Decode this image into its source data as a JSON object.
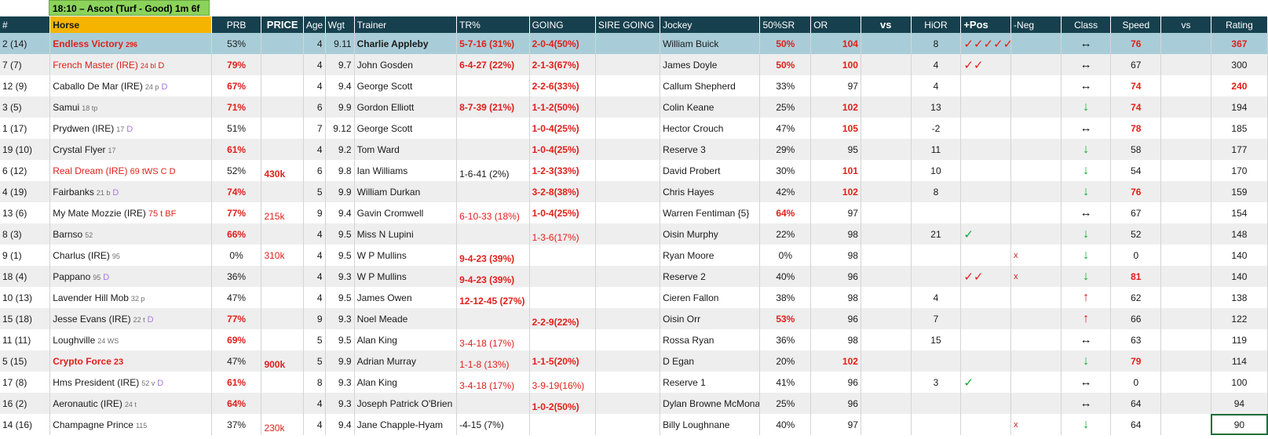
{
  "title": "18:10 – Ascot (Turf - Good) 1m 6f",
  "columns": [
    "#",
    "Horse",
    "PRB",
    "PRICE",
    "Age",
    "Wgt",
    "Trainer",
    "TR%",
    "GOING",
    "SIRE GOING",
    "Jockey",
    "50%SR",
    "OR",
    "vs",
    "HiOR",
    "+Pos",
    "-Neg",
    "Class",
    "Speed",
    "vs",
    "Rating"
  ],
  "rows": [
    {
      "num": "2 (14)",
      "horse": "Endless Victory",
      "horse_sup": "296",
      "prb": "53%",
      "price": "",
      "age": "4",
      "wgt": "9.11",
      "trainer": "Charlie Appleby",
      "tr": "5-7-16 (31%)",
      "going": "2-0-4(50%)",
      "sire": "",
      "jockey": "William Buick",
      "sr": "50%",
      "or": "104",
      "vs": "",
      "hior": "8",
      "pos": "✓✓✓✓✓",
      "neg": "",
      "class": "↔",
      "speed": "76",
      "vs2": "",
      "rating": "367"
    },
    {
      "num": "7 (7)",
      "horse": "French Master (IRE)",
      "horse_sup": "24 bl",
      "horse_sup2": "D",
      "prb": "79%",
      "price": "",
      "age": "4",
      "wgt": "9.7",
      "trainer": "John Gosden",
      "tr": "6-4-27 (22%)",
      "going": "2-1-3(67%)",
      "sire": "",
      "jockey": "James Doyle",
      "sr": "50%",
      "or": "100",
      "vs": "",
      "hior": "4",
      "pos": "✓✓",
      "neg": "",
      "class": "↔",
      "speed": "67",
      "vs2": "",
      "rating": "300"
    },
    {
      "num": "12 (9)",
      "horse": "Caballo De Mar (IRE)",
      "horse_sup": "24 p",
      "horse_sup2": "D",
      "prb": "67%",
      "price": "",
      "age": "4",
      "wgt": "9.4",
      "trainer": "George Scott",
      "tr": "",
      "going": "2-2-6(33%)",
      "sire": "",
      "jockey": "Callum Shepherd",
      "sr": "33%",
      "or": "97",
      "vs": "",
      "hior": "4",
      "pos": "",
      "neg": "",
      "class": "↔",
      "speed": "74",
      "vs2": "",
      "rating": "240"
    },
    {
      "num": "3 (5)",
      "horse": "Samui",
      "horse_sup": "18 tp",
      "prb": "71%",
      "price": "",
      "age": "6",
      "wgt": "9.9",
      "trainer": "Gordon Elliott",
      "tr": "8-7-39 (21%)",
      "going": "1-1-2(50%)",
      "sire": "",
      "jockey": "Colin Keane",
      "sr": "25%",
      "or": "102",
      "vs": "",
      "hior": "13",
      "pos": "",
      "neg": "",
      "class": "↓",
      "speed": "74",
      "vs2": "",
      "rating": "194"
    },
    {
      "num": "1 (17)",
      "horse": "Prydwen (IRE)",
      "horse_sup": "17",
      "horse_sup2": "D",
      "prb": "51%",
      "price": "",
      "age": "7",
      "wgt": "9.12",
      "trainer": "George Scott",
      "tr": "",
      "going": "1-0-4(25%)",
      "sire": "",
      "jockey": "Hector Crouch",
      "sr": "47%",
      "or": "105",
      "vs": "",
      "hior": "-2",
      "pos": "",
      "neg": "",
      "class": "↔",
      "speed": "78",
      "vs2": "",
      "rating": "185"
    },
    {
      "num": "19 (10)",
      "horse": "Crystal Flyer",
      "horse_sup": "17",
      "prb": "61%",
      "price": "",
      "age": "4",
      "wgt": "9.2",
      "trainer": "Tom Ward",
      "tr": "",
      "going": "1-0-4(25%)",
      "sire": "",
      "jockey": "Reserve 3",
      "sr": "29%",
      "or": "95",
      "vs": "",
      "hior": "11",
      "pos": "",
      "neg": "",
      "class": "↓",
      "speed": "58",
      "vs2": "",
      "rating": "177"
    },
    {
      "num": "6 (12)",
      "horse": "Real Dream (IRE)",
      "horse_sup": "69 tWS C D",
      "prb": "52%",
      "price": "430k",
      "age": "6",
      "wgt": "9.8",
      "trainer": "Ian Williams",
      "tr": "1-6-41 (2%)",
      "going": "1-2-3(33%)",
      "sire": "",
      "jockey": "David Probert",
      "sr": "30%",
      "or": "101",
      "vs": "",
      "hior": "10",
      "pos": "",
      "neg": "",
      "class": "↓",
      "speed": "54",
      "vs2": "",
      "rating": "170"
    },
    {
      "num": "4 (19)",
      "horse": "Fairbanks",
      "horse_sup": "21 b",
      "horse_sup2": "D",
      "prb": "74%",
      "price": "",
      "age": "5",
      "wgt": "9.9",
      "trainer": "William Durkan",
      "tr": "",
      "going": "3-2-8(38%)",
      "sire": "",
      "jockey": "Chris Hayes",
      "sr": "42%",
      "or": "102",
      "vs": "",
      "hior": "8",
      "pos": "",
      "neg": "",
      "class": "↓",
      "speed": "76",
      "vs2": "",
      "rating": "159"
    },
    {
      "num": "13 (6)",
      "horse": "My Mate Mozzie (IRE)",
      "horse_sup": "75 t BF",
      "prb": "77%",
      "price": "215k",
      "age": "9",
      "wgt": "9.4",
      "trainer": "Gavin Cromwell",
      "tr": "6-10-33 (18%)",
      "going": "1-0-4(25%)",
      "sire": "",
      "jockey": "Warren Fentiman {5}",
      "sr": "64%",
      "or": "97",
      "vs": "",
      "hior": "",
      "pos": "",
      "neg": "",
      "class": "↔",
      "speed": "67",
      "vs2": "",
      "rating": "154"
    },
    {
      "num": "8 (3)",
      "horse": "Barnso",
      "horse_sup": "52",
      "prb": "66%",
      "price": "",
      "age": "4",
      "wgt": "9.5",
      "trainer": "Miss N Lupini",
      "tr": "",
      "going": "1-3-6(17%)",
      "sire": "",
      "jockey": "Oisin Murphy",
      "sr": "22%",
      "or": "98",
      "vs": "",
      "hior": "21",
      "pos": "✓",
      "neg": "",
      "class": "↓",
      "speed": "52",
      "vs2": "",
      "rating": "148"
    },
    {
      "num": "9 (1)",
      "horse": "Charlus (IRE)",
      "horse_sup": "95",
      "prb": "0%",
      "price": "310k",
      "age": "4",
      "wgt": "9.5",
      "trainer": "W P Mullins",
      "tr": "9-4-23 (39%)",
      "going": "",
      "sire": "",
      "jockey": "Ryan Moore",
      "sr": "0%",
      "or": "98",
      "vs": "",
      "hior": "",
      "pos": "",
      "neg": "x",
      "class": "↓",
      "speed": "0",
      "vs2": "",
      "rating": "140"
    },
    {
      "num": "18 (4)",
      "horse": "Pappano",
      "horse_sup": "95",
      "horse_sup2": "D",
      "prb": "36%",
      "price": "",
      "age": "4",
      "wgt": "9.3",
      "trainer": "W P Mullins",
      "tr": "9-4-23 (39%)",
      "going": "",
      "sire": "",
      "jockey": "Reserve 2",
      "sr": "40%",
      "or": "96",
      "vs": "",
      "hior": "",
      "pos": "✓✓",
      "neg": "x",
      "class": "↓",
      "speed": "81",
      "vs2": "",
      "rating": "140"
    },
    {
      "num": "10 (13)",
      "horse": "Lavender Hill Mob",
      "horse_sup": "32 p",
      "prb": "47%",
      "price": "",
      "age": "4",
      "wgt": "9.5",
      "trainer": "James Owen",
      "tr": "12-12-45 (27%)",
      "going": "",
      "sire": "",
      "jockey": "Cieren Fallon",
      "sr": "38%",
      "or": "98",
      "vs": "",
      "hior": "4",
      "pos": "",
      "neg": "",
      "class": "↑",
      "speed": "62",
      "vs2": "",
      "rating": "138"
    },
    {
      "num": "15 (18)",
      "horse": "Jesse Evans (IRE)",
      "horse_sup": "22 t",
      "horse_sup2": "D",
      "prb": "77%",
      "price": "",
      "age": "9",
      "wgt": "9.3",
      "trainer": "Noel Meade",
      "tr": "",
      "going": "2-2-9(22%)",
      "sire": "",
      "jockey": "Oisin Orr",
      "sr": "53%",
      "or": "96",
      "vs": "",
      "hior": "7",
      "pos": "",
      "neg": "",
      "class": "↑",
      "speed": "66",
      "vs2": "",
      "rating": "122"
    },
    {
      "num": "11 (11)",
      "horse": "Loughville",
      "horse_sup": "24 WS",
      "prb": "69%",
      "price": "",
      "age": "5",
      "wgt": "9.5",
      "trainer": "Alan King",
      "tr": "3-4-18 (17%)",
      "going": "",
      "sire": "",
      "jockey": "Rossa Ryan",
      "sr": "36%",
      "or": "98",
      "vs": "",
      "hior": "15",
      "pos": "",
      "neg": "",
      "class": "↔",
      "speed": "63",
      "vs2": "",
      "rating": "119"
    },
    {
      "num": "5 (15)",
      "horse": "Crypto Force",
      "horse_sup": "23",
      "prb": "47%",
      "price": "900k",
      "age": "5",
      "wgt": "9.9",
      "trainer": "Adrian Murray",
      "tr": "1-1-8 (13%)",
      "going": "1-1-5(20%)",
      "sire": "",
      "jockey": "D Egan",
      "sr": "20%",
      "or": "102",
      "vs": "",
      "hior": "",
      "pos": "",
      "neg": "",
      "class": "↓",
      "speed": "79",
      "vs2": "",
      "rating": "114"
    },
    {
      "num": "17 (8)",
      "horse": "Hms President (IRE)",
      "horse_sup": "52 v",
      "horse_sup2": "D",
      "prb": "61%",
      "price": "",
      "age": "8",
      "wgt": "9.3",
      "trainer": "Alan King",
      "tr": "3-4-18 (17%)",
      "going": "3-9-19(16%)",
      "sire": "",
      "jockey": "Reserve 1",
      "sr": "41%",
      "or": "96",
      "vs": "",
      "hior": "3",
      "pos": "✓",
      "neg": "",
      "class": "↔",
      "speed": "0",
      "vs2": "",
      "rating": "100"
    },
    {
      "num": "16 (2)",
      "horse": "Aeronautic (IRE)",
      "horse_sup": "24 t",
      "prb": "64%",
      "price": "",
      "age": "4",
      "wgt": "9.3",
      "trainer": "Joseph Patrick O'Brien",
      "tr": "",
      "going": "1-0-2(50%)",
      "sire": "",
      "jockey": "Dylan Browne McMona",
      "sr": "25%",
      "or": "96",
      "vs": "",
      "hior": "",
      "pos": "",
      "neg": "",
      "class": "↔",
      "speed": "64",
      "vs2": "",
      "rating": "94"
    },
    {
      "num": "14 (16)",
      "horse": "Champagne Prince",
      "horse_sup": "115",
      "prb": "37%",
      "price": "230k",
      "age": "4",
      "wgt": "9.4",
      "trainer": "Jane Chapple-Hyam",
      "tr": "-4-15 (7%)",
      "going": "",
      "sire": "",
      "jockey": "Billy Loughnane",
      "sr": "40%",
      "or": "97",
      "vs": "",
      "hior": "",
      "pos": "",
      "neg": "x",
      "class": "↓",
      "speed": "64",
      "vs2": "",
      "rating": "90"
    }
  ]
}
